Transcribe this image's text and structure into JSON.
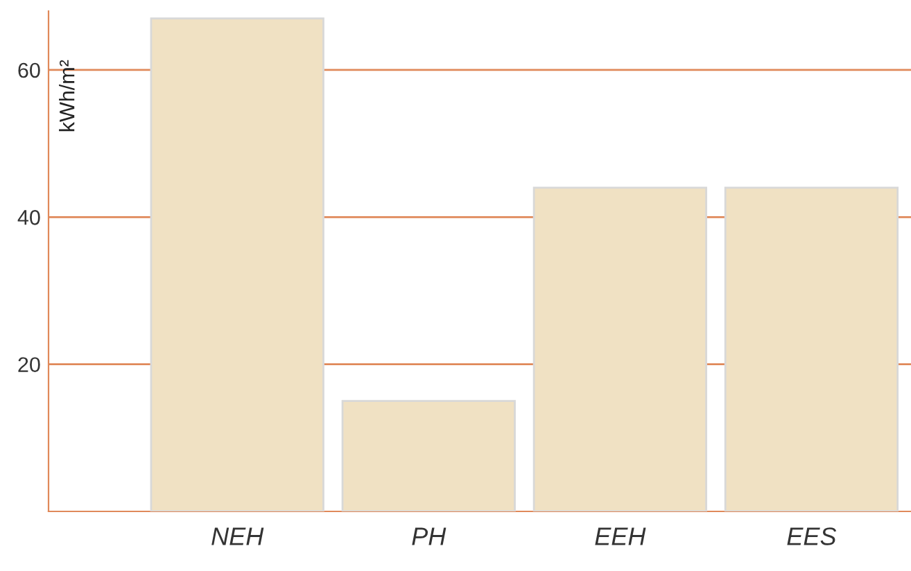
{
  "chart_data": {
    "type": "bar",
    "ylabel": "kWh/m²",
    "categories": [
      "NEH",
      "PH",
      "EEH",
      "EES"
    ],
    "values": [
      67,
      15,
      44,
      44
    ],
    "color": "#f0e1c3",
    "ylim": [
      0,
      68
    ],
    "yticks": [
      20,
      40,
      60
    ],
    "grid": "y",
    "legend": false
  }
}
